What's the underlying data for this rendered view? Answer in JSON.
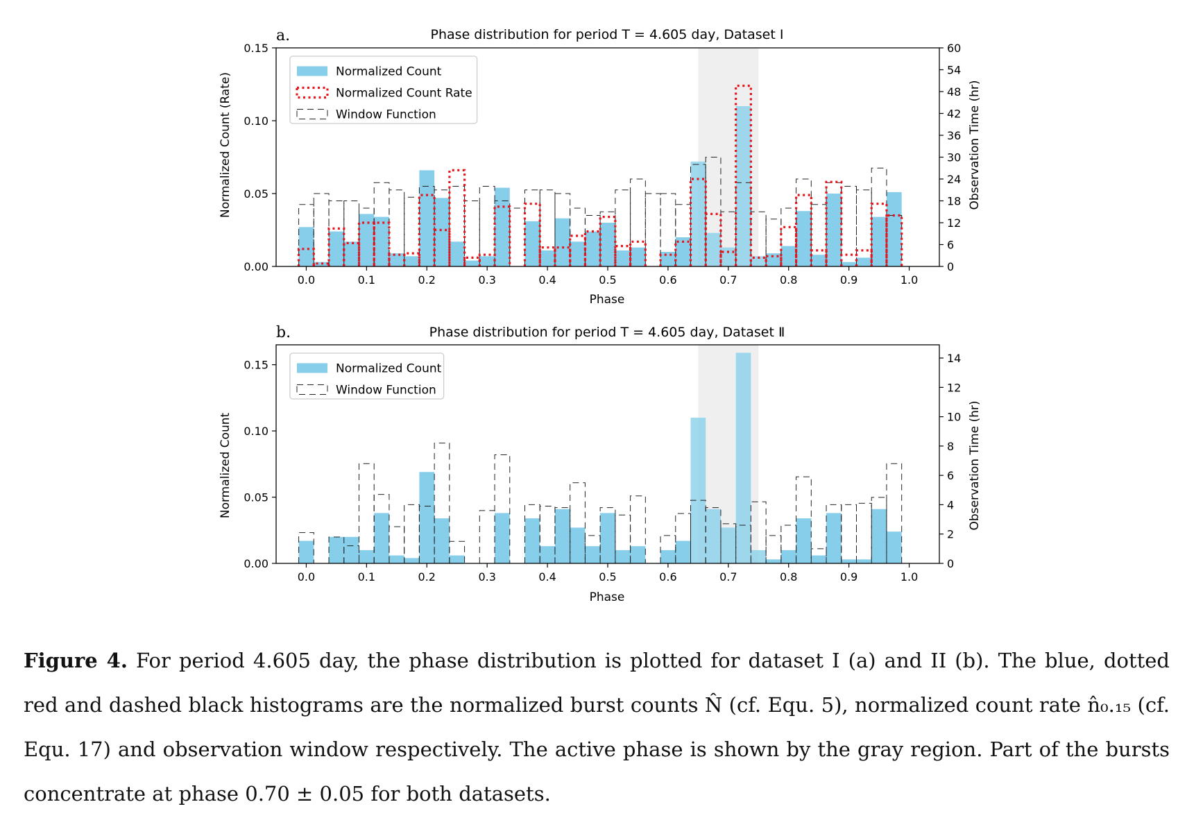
{
  "colors": {
    "count": "#87ceeb",
    "rate": "#e8141c",
    "window": "#222222",
    "active": "#efefef",
    "axis": "#000000"
  },
  "panels": [
    {
      "panel_label": "a.",
      "title": "Phase distribution for period T = 4.605 day, Dataset Ⅰ",
      "xlabel": "Phase",
      "ylabel_left": "Normalized Count (Rate)",
      "ylabel_right": "Observation Time (hr)",
      "legend": [
        "Normalized Count",
        "Normalized Count Rate",
        "Window Function"
      ]
    },
    {
      "panel_label": "b.",
      "title": "Phase distribution for period T = 4.605 day, Dataset Ⅱ",
      "xlabel": "Phase",
      "ylabel_left": "Normalized Count",
      "ylabel_right": "Observation Time (hr)",
      "legend": [
        "Normalized Count",
        "Window Function"
      ]
    }
  ],
  "chart_data": [
    {
      "type": "bar",
      "x_tick_labels": [
        "0.0",
        "0.1",
        "0.2",
        "0.3",
        "0.4",
        "0.5",
        "0.6",
        "0.7",
        "0.8",
        "0.9",
        "1.0"
      ],
      "xlim": [
        -0.05,
        1.05
      ],
      "ylim_left": [
        0,
        0.15
      ],
      "y_ticks_left": [
        "0.00",
        "0.05",
        "0.10",
        "0.15"
      ],
      "ylim_right": [
        0,
        60
      ],
      "y_ticks_right": [
        "0",
        "6",
        "12",
        "18",
        "24",
        "30",
        "36",
        "42",
        "48",
        "54",
        "60"
      ],
      "active_phase": [
        0.65,
        0.75
      ],
      "bin_width": 0.025,
      "bin_centers": [
        0.0,
        0.025,
        0.05,
        0.075,
        0.1,
        0.125,
        0.15,
        0.175,
        0.2,
        0.225,
        0.25,
        0.275,
        0.3,
        0.325,
        0.35,
        0.375,
        0.4,
        0.425,
        0.45,
        0.475,
        0.5,
        0.525,
        0.55,
        0.575,
        0.6,
        0.625,
        0.65,
        0.675,
        0.7,
        0.725,
        0.75,
        0.775,
        0.8,
        0.825,
        0.85,
        0.875,
        0.9,
        0.925,
        0.95,
        0.975,
        1.0
      ],
      "series": [
        {
          "name": "Normalized Count",
          "values": [
            0.027,
            0.003,
            0.024,
            0.017,
            0.036,
            0.034,
            0.009,
            0.007,
            0.066,
            0.047,
            0.017,
            0.004,
            0.007,
            0.054,
            0.0,
            0.031,
            0.011,
            0.033,
            0.017,
            0.024,
            0.03,
            0.011,
            0.013,
            0.0,
            0.01,
            0.02,
            0.072,
            0.023,
            0.013,
            0.11,
            0.007,
            0.009,
            0.014,
            0.038,
            0.008,
            0.05,
            0.003,
            0.006,
            0.034,
            0.051,
            0.0
          ]
        },
        {
          "name": "Normalized Count Rate",
          "values": [
            0.012,
            0.002,
            0.026,
            0.016,
            0.03,
            0.03,
            0.008,
            0.009,
            0.049,
            0.025,
            0.066,
            0.006,
            0.008,
            0.041,
            0.0,
            0.043,
            0.013,
            0.013,
            0.021,
            0.024,
            0.034,
            0.014,
            0.017,
            0.0,
            0.008,
            0.017,
            0.06,
            0.036,
            0.01,
            0.124,
            0.006,
            0.007,
            0.027,
            0.049,
            0.011,
            0.058,
            0.008,
            0.011,
            0.043,
            0.035,
            0.0
          ]
        },
        {
          "name": "Window Function",
          "values": [
            17,
            20,
            18,
            18,
            16,
            23,
            21,
            19,
            22,
            21,
            22,
            18,
            22,
            18,
            16,
            21,
            21,
            20,
            16,
            14,
            15,
            21,
            24,
            20,
            20,
            17,
            28,
            30,
            15,
            23,
            15,
            13,
            16,
            24,
            17,
            23,
            22,
            21,
            27,
            14,
            0
          ]
        }
      ]
    },
    {
      "type": "bar",
      "x_tick_labels": [
        "0.0",
        "0.1",
        "0.2",
        "0.3",
        "0.4",
        "0.5",
        "0.6",
        "0.7",
        "0.8",
        "0.9",
        "1.0"
      ],
      "xlim": [
        -0.05,
        1.05
      ],
      "ylim_left": [
        0,
        0.165
      ],
      "y_ticks_left": [
        "0.00",
        "0.05",
        "0.10",
        "0.15"
      ],
      "ylim_right": [
        0,
        14.9
      ],
      "y_ticks_right": [
        "0",
        "2",
        "4",
        "6",
        "8",
        "10",
        "12",
        "14"
      ],
      "active_phase": [
        0.65,
        0.75
      ],
      "bin_width": 0.025,
      "bin_centers": [
        0.0,
        0.025,
        0.05,
        0.075,
        0.1,
        0.125,
        0.15,
        0.175,
        0.2,
        0.225,
        0.25,
        0.275,
        0.3,
        0.325,
        0.35,
        0.375,
        0.4,
        0.425,
        0.45,
        0.475,
        0.5,
        0.525,
        0.55,
        0.575,
        0.6,
        0.625,
        0.65,
        0.675,
        0.7,
        0.725,
        0.75,
        0.775,
        0.8,
        0.825,
        0.85,
        0.875,
        0.9,
        0.925,
        0.95,
        0.975,
        1.0
      ],
      "series": [
        {
          "name": "Normalized Count",
          "values": [
            0.017,
            0.0,
            0.02,
            0.02,
            0.01,
            0.038,
            0.006,
            0.004,
            0.069,
            0.034,
            0.006,
            0.0,
            0.0,
            0.038,
            0.0,
            0.034,
            0.013,
            0.041,
            0.027,
            0.013,
            0.038,
            0.01,
            0.013,
            0.0,
            0.01,
            0.017,
            0.11,
            0.041,
            0.027,
            0.159,
            0.01,
            0.003,
            0.01,
            0.034,
            0.006,
            0.038,
            0.003,
            0.003,
            0.041,
            0.024,
            0.0
          ]
        },
        {
          "name": "Window Function",
          "values": [
            2.1,
            0,
            1.8,
            1.2,
            6.8,
            4.7,
            2.5,
            4.0,
            3.9,
            8.2,
            1.5,
            0,
            3.6,
            7.4,
            0,
            4.0,
            3.9,
            3.8,
            5.5,
            1.9,
            3.8,
            3.3,
            4.6,
            0,
            1.9,
            3.4,
            4.3,
            3.8,
            2.7,
            2.6,
            4.2,
            1.9,
            2.6,
            5.9,
            1.0,
            4.0,
            4.0,
            4.1,
            4.5,
            6.8,
            0
          ]
        }
      ]
    }
  ],
  "caption": {
    "figure_label": "Figure 4.",
    "text": "For period 4.605 day, the phase distribution is plotted for dataset I (a) and II (b). The blue, dotted red and dashed black histograms are the normalized burst counts N̂ (cf. Equ. 5), normalized count rate n̂₀.₁₅ (cf. Equ. 17) and observation window respectively. The active phase is shown by the gray region. Part of the bursts concentrate at phase 0.70 ± 0.05 for both datasets."
  }
}
